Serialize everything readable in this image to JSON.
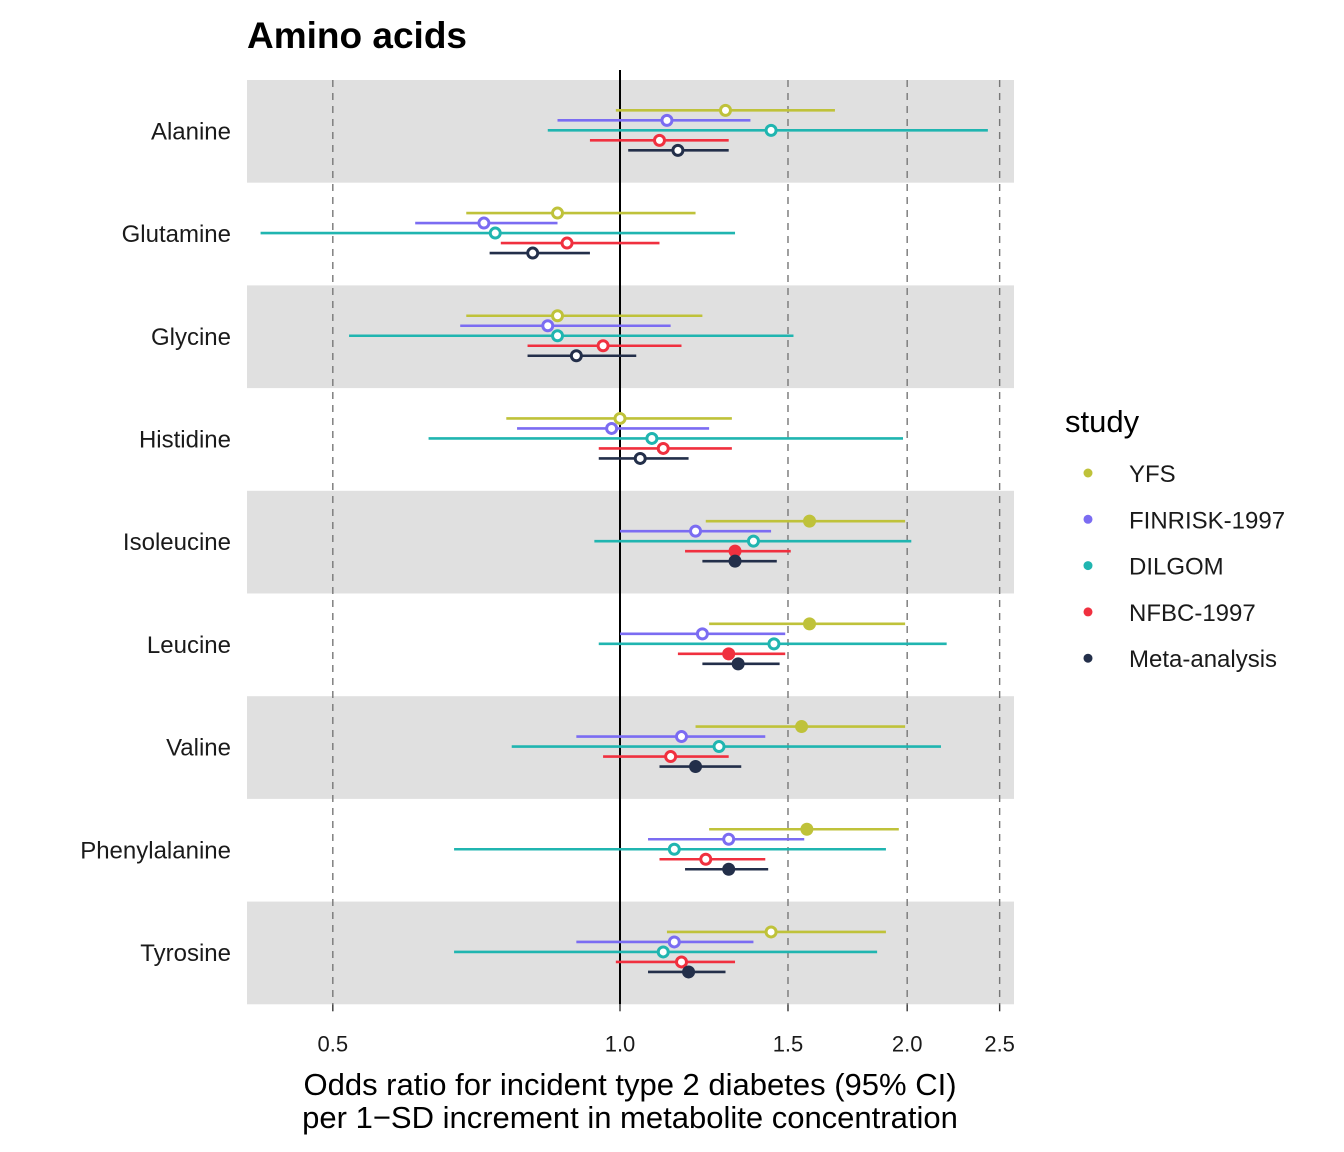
{
  "chart_data": {
    "type": "forest",
    "title": "Amino acids",
    "xlabel_lines": [
      "Odds ratio for incident type 2 diabetes (95% CI)",
      "per 1−SD increment in metabolite concentration"
    ],
    "x_scale": "log",
    "xlim": [
      0.41,
      2.6
    ],
    "x_ticks": [
      {
        "value": 0.5,
        "label": "0.5"
      },
      {
        "value": 1.0,
        "label": "1.0"
      },
      {
        "value": 1.5,
        "label": "1.5"
      },
      {
        "value": 2.0,
        "label": "2.0"
      },
      {
        "value": 2.5,
        "label": "2.5"
      }
    ],
    "reference_line": 1.0,
    "dashed_lines": [
      0.5,
      1.5,
      2.0,
      2.5
    ],
    "legend_title": "study",
    "legend_position": "right",
    "series": [
      {
        "name": "YFS",
        "color": "#bfc23a"
      },
      {
        "name": "FINRISK-1997",
        "color": "#7b6cf2"
      },
      {
        "name": "DILGOM",
        "color": "#20b5b0"
      },
      {
        "name": "NFBC-1997",
        "color": "#f0303f"
      },
      {
        "name": "Meta-analysis",
        "color": "#232f4a"
      }
    ],
    "categories": [
      "Alanine",
      "Glutamine",
      "Glycine",
      "Histidine",
      "Isoleucine",
      "Leucine",
      "Valine",
      "Phenylalanine",
      "Tyrosine"
    ],
    "rows": [
      {
        "metabolite": "Alanine",
        "estimates": [
          {
            "or": 1.29,
            "lo": 0.99,
            "hi": 1.68,
            "filled": false
          },
          {
            "or": 1.12,
            "lo": 0.86,
            "hi": 1.37,
            "filled": false
          },
          {
            "or": 1.44,
            "lo": 0.84,
            "hi": 2.43,
            "filled": false
          },
          {
            "or": 1.1,
            "lo": 0.93,
            "hi": 1.3,
            "filled": false
          },
          {
            "or": 1.15,
            "lo": 1.02,
            "hi": 1.3,
            "filled": false
          }
        ]
      },
      {
        "metabolite": "Glutamine",
        "estimates": [
          {
            "or": 0.86,
            "lo": 0.69,
            "hi": 1.2,
            "filled": false
          },
          {
            "or": 0.72,
            "lo": 0.61,
            "hi": 0.86,
            "filled": false
          },
          {
            "or": 0.74,
            "lo": 0.42,
            "hi": 1.32,
            "filled": false
          },
          {
            "or": 0.88,
            "lo": 0.75,
            "hi": 1.1,
            "filled": false
          },
          {
            "or": 0.81,
            "lo": 0.73,
            "hi": 0.93,
            "filled": false
          }
        ]
      },
      {
        "metabolite": "Glycine",
        "estimates": [
          {
            "or": 0.86,
            "lo": 0.69,
            "hi": 1.22,
            "filled": false
          },
          {
            "or": 0.84,
            "lo": 0.68,
            "hi": 1.13,
            "filled": false
          },
          {
            "or": 0.86,
            "lo": 0.52,
            "hi": 1.52,
            "filled": false
          },
          {
            "or": 0.96,
            "lo": 0.8,
            "hi": 1.16,
            "filled": false
          },
          {
            "or": 0.9,
            "lo": 0.8,
            "hi": 1.04,
            "filled": false
          }
        ]
      },
      {
        "metabolite": "Histidine",
        "estimates": [
          {
            "or": 1.0,
            "lo": 0.76,
            "hi": 1.31,
            "filled": false
          },
          {
            "or": 0.98,
            "lo": 0.78,
            "hi": 1.24,
            "filled": false
          },
          {
            "or": 1.08,
            "lo": 0.63,
            "hi": 1.98,
            "filled": false
          },
          {
            "or": 1.11,
            "lo": 0.95,
            "hi": 1.31,
            "filled": false
          },
          {
            "or": 1.05,
            "lo": 0.95,
            "hi": 1.18,
            "filled": false
          }
        ]
      },
      {
        "metabolite": "Isoleucine",
        "estimates": [
          {
            "or": 1.58,
            "lo": 1.23,
            "hi": 1.99,
            "filled": true
          },
          {
            "or": 1.2,
            "lo": 1.0,
            "hi": 1.44,
            "filled": false
          },
          {
            "or": 1.38,
            "lo": 0.94,
            "hi": 2.02,
            "filled": false
          },
          {
            "or": 1.32,
            "lo": 1.17,
            "hi": 1.51,
            "filled": true
          },
          {
            "or": 1.32,
            "lo": 1.22,
            "hi": 1.46,
            "filled": true
          }
        ]
      },
      {
        "metabolite": "Leucine",
        "estimates": [
          {
            "or": 1.58,
            "lo": 1.24,
            "hi": 1.99,
            "filled": true
          },
          {
            "or": 1.22,
            "lo": 1.0,
            "hi": 1.49,
            "filled": false
          },
          {
            "or": 1.45,
            "lo": 0.95,
            "hi": 2.2,
            "filled": false
          },
          {
            "or": 1.3,
            "lo": 1.15,
            "hi": 1.49,
            "filled": true
          },
          {
            "or": 1.33,
            "lo": 1.22,
            "hi": 1.47,
            "filled": true
          }
        ]
      },
      {
        "metabolite": "Valine",
        "estimates": [
          {
            "or": 1.55,
            "lo": 1.2,
            "hi": 1.99,
            "filled": true
          },
          {
            "or": 1.16,
            "lo": 0.9,
            "hi": 1.42,
            "filled": false
          },
          {
            "or": 1.27,
            "lo": 0.77,
            "hi": 2.17,
            "filled": false
          },
          {
            "or": 1.13,
            "lo": 0.96,
            "hi": 1.3,
            "filled": false
          },
          {
            "or": 1.2,
            "lo": 1.1,
            "hi": 1.34,
            "filled": true
          }
        ]
      },
      {
        "metabolite": "Phenylalanine",
        "estimates": [
          {
            "or": 1.57,
            "lo": 1.24,
            "hi": 1.96,
            "filled": true
          },
          {
            "or": 1.3,
            "lo": 1.07,
            "hi": 1.56,
            "filled": false
          },
          {
            "or": 1.14,
            "lo": 0.67,
            "hi": 1.9,
            "filled": false
          },
          {
            "or": 1.23,
            "lo": 1.1,
            "hi": 1.42,
            "filled": false
          },
          {
            "or": 1.3,
            "lo": 1.17,
            "hi": 1.43,
            "filled": true
          }
        ]
      },
      {
        "metabolite": "Tyrosine",
        "estimates": [
          {
            "or": 1.44,
            "lo": 1.12,
            "hi": 1.9,
            "filled": false
          },
          {
            "or": 1.14,
            "lo": 0.9,
            "hi": 1.38,
            "filled": false
          },
          {
            "or": 1.11,
            "lo": 0.67,
            "hi": 1.86,
            "filled": false
          },
          {
            "or": 1.16,
            "lo": 0.99,
            "hi": 1.32,
            "filled": false
          },
          {
            "or": 1.18,
            "lo": 1.07,
            "hi": 1.29,
            "filled": true
          }
        ]
      }
    ]
  }
}
